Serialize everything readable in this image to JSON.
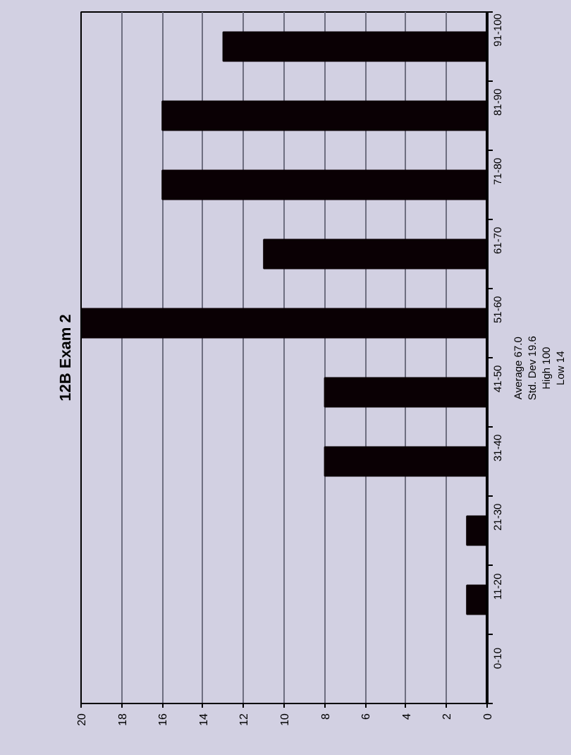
{
  "chart_data": {
    "type": "bar",
    "title": "12B Exam 2",
    "orientation": "horizontal",
    "categories": [
      "91-100",
      "81-90",
      "71-80",
      "61-70",
      "51-60",
      "41-50",
      "31-40",
      "21-30",
      "11-20",
      "0-10"
    ],
    "values": [
      13,
      16,
      16,
      11,
      20,
      8,
      8,
      1,
      1,
      0
    ],
    "color": "#0a0004",
    "xlim": [
      20,
      0
    ],
    "xticks": [
      0,
      2,
      4,
      6,
      8,
      10,
      12,
      14,
      16,
      18,
      20
    ],
    "grid": "x",
    "annotations": [
      "Average 67.0",
      "Std. Dev 19.6",
      "High 100",
      "Low 14"
    ]
  }
}
